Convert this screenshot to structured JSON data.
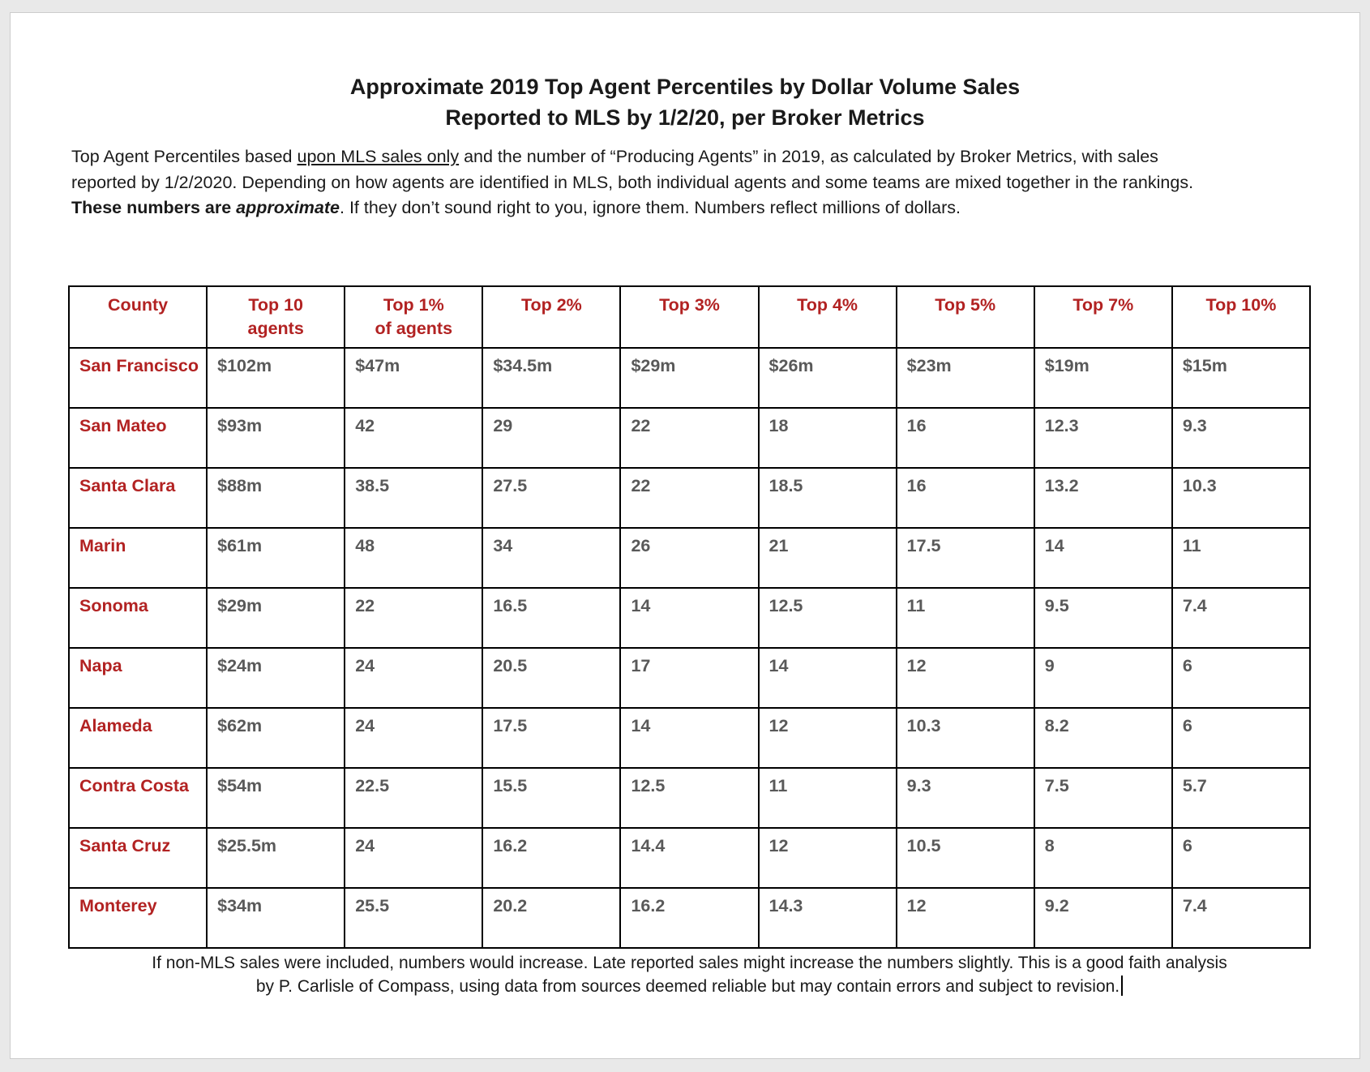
{
  "document": {
    "title_line1": "Approximate 2019 Top Agent Percentiles by Dollar Volume Sales",
    "title_line2": "Reported to MLS by 1/2/20, per Broker Metrics",
    "intro_lines": [
      [
        {
          "style": "normal",
          "text": "Top Agent Percentiles based "
        },
        {
          "style": "underline",
          "text": "upon MLS sales only"
        },
        {
          "style": "normal",
          "text": " and the number of “Producing Agents” in 2019, as calculated by Broker Metrics, with sales"
        }
      ],
      [
        {
          "style": "normal",
          "text": "reported by 1/2/2020. Depending on how agents are identified in MLS, both individual agents and some teams are mixed together in the rankings."
        }
      ],
      [
        {
          "style": "bold",
          "text": "These numbers are "
        },
        {
          "style": "bold-italic",
          "text": "approximate"
        },
        {
          "style": "normal",
          "text": ". If they don’t sound right to you, ignore them. Numbers reflect millions of dollars."
        }
      ]
    ],
    "table": {
      "headers": [
        "County",
        "Top 10\nagents",
        "Top 1%\nof agents",
        "Top 2%",
        "Top 3%",
        "Top 4%",
        "Top 5%",
        "Top 7%",
        "Top 10%"
      ],
      "rows": [
        {
          "county": "San Francisco",
          "values": [
            "$102m",
            "$47m",
            "$34.5m",
            "$29m",
            "$26m",
            "$23m",
            "$19m",
            "$15m"
          ]
        },
        {
          "county": "San Mateo",
          "values": [
            "$93m",
            "42",
            "29",
            "22",
            "18",
            "16",
            "12.3",
            "9.3"
          ]
        },
        {
          "county": "Santa Clara",
          "values": [
            "$88m",
            "38.5",
            "27.5",
            "22",
            "18.5",
            "16",
            "13.2",
            "10.3"
          ]
        },
        {
          "county": "Marin",
          "values": [
            "$61m",
            "48",
            "34",
            "26",
            "21",
            "17.5",
            "14",
            "11"
          ]
        },
        {
          "county": "Sonoma",
          "values": [
            "$29m",
            "22",
            "16.5",
            "14",
            "12.5",
            "11",
            "9.5",
            "7.4"
          ]
        },
        {
          "county": "Napa",
          "values": [
            "$24m",
            "24",
            "20.5",
            "17",
            "14",
            "12",
            "9",
            "6"
          ]
        },
        {
          "county": "Alameda",
          "values": [
            "$62m",
            "24",
            "17.5",
            "14",
            "12",
            "10.3",
            "8.2",
            "6"
          ]
        },
        {
          "county": "Contra Costa",
          "values": [
            "$54m",
            "22.5",
            "15.5",
            "12.5",
            "11",
            "9.3",
            "7.5",
            "5.7"
          ]
        },
        {
          "county": "Santa Cruz",
          "values": [
            "$25.5m",
            "24",
            "16.2",
            "14.4",
            "12",
            "10.5",
            "8",
            "6"
          ]
        },
        {
          "county": "Monterey",
          "values": [
            "$34m",
            "25.5",
            "20.2",
            "16.2",
            "14.3",
            "12",
            "9.2",
            "7.4"
          ]
        }
      ]
    },
    "footer_line1": "If non-MLS sales were included, numbers would increase. Late reported sales might increase the numbers slightly. This is a good faith analysis",
    "footer_line2": "by P. Carlisle of Compass, using data from sources deemed reliable but may contain errors and subject to revision.",
    "colors": {
      "accent_red": "#b22222",
      "value_gray": "#595959",
      "table_border": "#000000",
      "page_background": "#ffffff",
      "canvas_background": "#e9e9e9"
    }
  }
}
